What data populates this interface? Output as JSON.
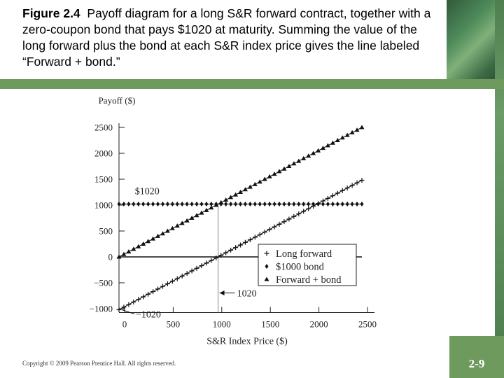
{
  "caption": {
    "figure_label": "Figure 2.4",
    "text": "Payoff diagram for a long S&R forward contract, together with a zero-coupon bond that pays $1020 at maturity. Summing the value of the long forward plus the bond at each S&R index price gives the line labeled “Forward + bond.”"
  },
  "footer": {
    "copyright": "Copyright © 2009 Pearson Prentice Hall. All rights reserved.",
    "page_number": "2-9"
  },
  "chart_data": {
    "type": "line",
    "xlabel": "S&R Index Price ($)",
    "ylabel": "Payoff ($)",
    "xlim": [
      0,
      2500
    ],
    "ylim": [
      -1020,
      2500
    ],
    "xticks": [
      0,
      500,
      1000,
      1500,
      2000,
      2500
    ],
    "yticks": [
      -1000,
      -500,
      0,
      500,
      1000,
      1500,
      2000,
      2500
    ],
    "xtick_labels": [
      "0",
      "500",
      "1000",
      "1500",
      "2000",
      "2500"
    ],
    "ytick_labels": [
      "−1000",
      "−500",
      "0",
      "500",
      "1000",
      "1500",
      "2000",
      "2500"
    ],
    "legend_position": "bottom-right",
    "series": [
      {
        "name": "Long forward",
        "marker": "plus",
        "x": [
          0,
          2500
        ],
        "y": [
          -1020,
          1480
        ]
      },
      {
        "name": "$1000 bond",
        "marker": "diamond",
        "x": [
          0,
          2500
        ],
        "y": [
          1020,
          1020
        ]
      },
      {
        "name": "Forward + bond",
        "marker": "triangle",
        "x": [
          0,
          2500
        ],
        "y": [
          0,
          2500
        ]
      }
    ],
    "annotations": [
      {
        "text": "$1020",
        "x": 200,
        "y": 1250
      },
      {
        "text": "−1020",
        "x": 180,
        "y": -1020
      },
      {
        "text": "1020",
        "x": 1200,
        "y": -940
      }
    ],
    "reference_lines": {
      "vertical_x": 1020,
      "horizontal_y": 0
    }
  }
}
